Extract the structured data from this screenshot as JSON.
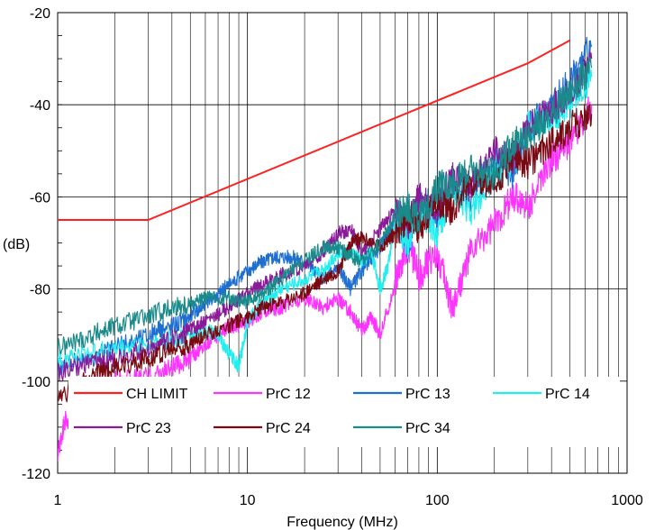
{
  "chart_data": {
    "type": "line",
    "xscale": "log",
    "xlim": [
      1,
      1000
    ],
    "ylim": [
      -120,
      -20
    ],
    "grid": true,
    "legend_position": "bottom-inside",
    "xlabel": "Frequency (MHz)",
    "ylabel": "(dB)",
    "x_ticks": [
      {
        "v": 1,
        "label": "1"
      },
      {
        "v": 10,
        "label": "10"
      },
      {
        "v": 100,
        "label": "100"
      },
      {
        "v": 1000,
        "label": "1000"
      }
    ],
    "y_ticks": [
      {
        "v": -20,
        "label": "-20"
      },
      {
        "v": -40,
        "label": "-40"
      },
      {
        "v": -60,
        "label": "-60"
      },
      {
        "v": -80,
        "label": "-80"
      },
      {
        "v": -100,
        "label": "-100"
      },
      {
        "v": -120,
        "label": "-120"
      }
    ],
    "series": [
      {
        "name": "CH LIMIT",
        "color": "#ff2020",
        "x": [
          1,
          3,
          300,
          500
        ],
        "y": [
          -65,
          -65,
          -31,
          -26
        ]
      },
      {
        "name": "PrC 12",
        "color": "#ff33ff",
        "x": [
          1,
          1.1,
          1.3,
          1.5,
          2,
          3,
          4,
          5,
          6,
          7,
          8,
          9,
          10,
          12,
          15,
          20,
          25,
          30,
          35,
          40,
          45,
          50,
          60,
          70,
          80,
          100,
          120,
          150,
          200,
          250,
          300,
          400,
          500,
          650
        ],
        "y": [
          -116,
          -108,
          -112,
          -103,
          -100,
          -99,
          -97,
          -95,
          -92,
          -90,
          -88,
          -88,
          -87,
          -85,
          -84,
          -82,
          -84,
          -82,
          -85,
          -89,
          -86,
          -90,
          -79,
          -70,
          -77,
          -72,
          -84,
          -72,
          -66,
          -60,
          -62,
          -52,
          -48,
          -40
        ]
      },
      {
        "name": "PrC 13",
        "color": "#1f6fd1",
        "x": [
          1,
          1.5,
          2,
          3,
          4,
          5,
          6,
          7,
          8,
          10,
          12,
          14,
          17,
          20,
          25,
          30,
          35,
          40,
          50,
          60,
          70,
          80,
          100,
          120,
          150,
          200,
          250,
          300,
          400,
          500,
          650
        ],
        "y": [
          -97,
          -95,
          -93,
          -90,
          -88,
          -86,
          -83,
          -81,
          -79,
          -76,
          -74,
          -73,
          -73,
          -74,
          -78,
          -75,
          -80,
          -76,
          -71,
          -65,
          -70,
          -62,
          -65,
          -57,
          -60,
          -52,
          -55,
          -45,
          -40,
          -35,
          -27
        ]
      },
      {
        "name": "PrC 14",
        "color": "#22eeee",
        "x": [
          1,
          1.5,
          2,
          3,
          4,
          5,
          6,
          7,
          8,
          9,
          10,
          12,
          15,
          20,
          25,
          30,
          35,
          40,
          45,
          50,
          55,
          60,
          70,
          80,
          100,
          120,
          150,
          200,
          250,
          300,
          400,
          500,
          650
        ],
        "y": [
          -95,
          -94,
          -93,
          -92,
          -91,
          -90,
          -89,
          -90,
          -94,
          -97,
          -87,
          -83,
          -80,
          -78,
          -76,
          -72,
          -72,
          -74,
          -72,
          -80,
          -75,
          -65,
          -70,
          -62,
          -68,
          -58,
          -63,
          -55,
          -53,
          -45,
          -43,
          -40,
          -34
        ]
      },
      {
        "name": "PrC 23",
        "color": "#8a1a9a",
        "x": [
          1,
          1.5,
          2,
          3,
          4,
          5,
          6,
          8,
          10,
          12,
          15,
          20,
          25,
          30,
          35,
          40,
          50,
          60,
          70,
          80,
          100,
          120,
          150,
          200,
          250,
          300,
          400,
          500,
          650
        ],
        "y": [
          -98,
          -96,
          -95,
          -93,
          -91,
          -89,
          -87,
          -84,
          -81,
          -79,
          -77,
          -75,
          -72,
          -68,
          -67,
          -72,
          -67,
          -63,
          -66,
          -60,
          -62,
          -55,
          -58,
          -50,
          -52,
          -45,
          -41,
          -38,
          -30
        ]
      },
      {
        "name": "PrC 24",
        "color": "#7a0a12",
        "x": [
          1,
          1.5,
          2,
          3,
          4,
          5,
          6,
          8,
          10,
          12,
          15,
          20,
          25,
          30,
          35,
          40,
          50,
          60,
          70,
          80,
          100,
          120,
          150,
          200,
          250,
          300,
          400,
          500,
          650
        ],
        "y": [
          -104,
          -99,
          -97,
          -95,
          -93,
          -92,
          -90,
          -88,
          -86,
          -84,
          -83,
          -81,
          -78,
          -76,
          -70,
          -69,
          -71,
          -68,
          -64,
          -67,
          -61,
          -63,
          -56,
          -58,
          -51,
          -53,
          -48,
          -45,
          -42
        ]
      },
      {
        "name": "PrC 34",
        "color": "#1a8a8a",
        "x": [
          1,
          1.5,
          2,
          3,
          4,
          5,
          6,
          8,
          10,
          12,
          15,
          20,
          25,
          30,
          35,
          40,
          50,
          60,
          70,
          80,
          100,
          120,
          150,
          200,
          250,
          300,
          400,
          500,
          650
        ],
        "y": [
          -93,
          -90,
          -88,
          -86,
          -84,
          -83,
          -82,
          -82,
          -83,
          -81,
          -78,
          -74,
          -71,
          -71,
          -73,
          -74,
          -70,
          -64,
          -62,
          -65,
          -58,
          -57,
          -54,
          -55,
          -48,
          -47,
          -42,
          -37,
          -32
        ]
      }
    ]
  }
}
